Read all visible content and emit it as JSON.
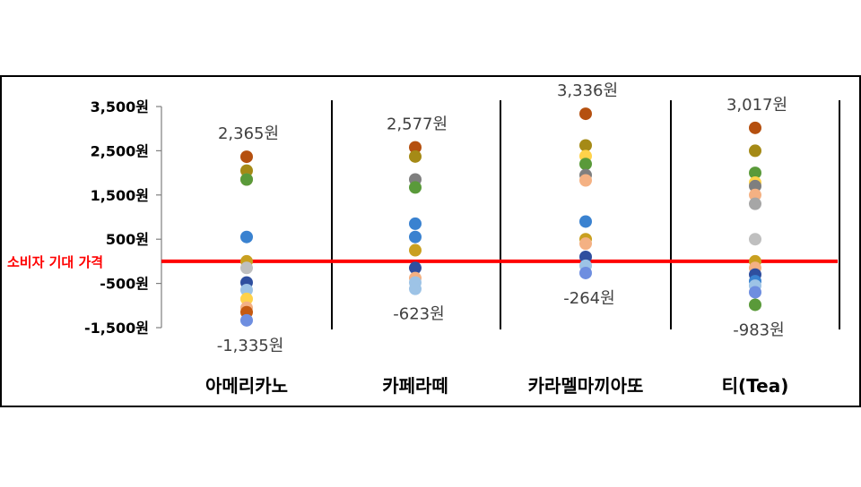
{
  "chart_data": {
    "type": "scatter",
    "title": "",
    "xlabel": "",
    "ylabel": "",
    "ylim": [
      -1500,
      3500
    ],
    "y_ticks": [
      "3,500원",
      "2,500원",
      "1,500원",
      "500원",
      "-500원",
      "-1,500원"
    ],
    "y_tick_values": [
      3500,
      2500,
      1500,
      500,
      -500,
      -1500
    ],
    "grid": false,
    "reference_line": {
      "label": "소비자 기대 가격",
      "value": 0,
      "color": "#ff0000"
    },
    "categories": [
      "아메리카노",
      "카페라떼",
      "카라멜마끼아또",
      "티(Tea)"
    ],
    "groups": [
      {
        "category": "아메리카노",
        "max_label": "2,365원",
        "min_label": "-1,335원",
        "points": [
          {
            "value": 2365,
            "color": "#b5500f"
          },
          {
            "value": 2050,
            "color": "#a58a16"
          },
          {
            "value": 1850,
            "color": "#f0a070"
          },
          {
            "value": 1850,
            "color": "#5a9a3a"
          },
          {
            "value": 550,
            "color": "#3a82d0"
          },
          {
            "value": 0,
            "color": "#c9a020"
          },
          {
            "value": -150,
            "color": "#bfbfbf"
          },
          {
            "value": -480,
            "color": "#2f4f9f"
          },
          {
            "value": -650,
            "color": "#9dc3e6"
          },
          {
            "value": -850,
            "color": "#ffd24a"
          },
          {
            "value": -1050,
            "color": "#f4b183"
          },
          {
            "value": -1150,
            "color": "#c55a11"
          },
          {
            "value": -1335,
            "color": "#6e8ee0"
          }
        ]
      },
      {
        "category": "카페라떼",
        "max_label": "2,577원",
        "min_label": "-623원",
        "points": [
          {
            "value": 2577,
            "color": "#b5500f"
          },
          {
            "value": 2370,
            "color": "#a58a16"
          },
          {
            "value": 1850,
            "color": "#7f7f7f"
          },
          {
            "value": 1670,
            "color": "#5a9a3a"
          },
          {
            "value": 850,
            "color": "#3a82d0"
          },
          {
            "value": 550,
            "color": "#3a82d0"
          },
          {
            "value": 250,
            "color": "#c9a020"
          },
          {
            "value": -150,
            "color": "#2f4f9f"
          },
          {
            "value": -380,
            "color": "#f4b183"
          },
          {
            "value": -480,
            "color": "#9dc3e6"
          },
          {
            "value": -623,
            "color": "#9dc3e6"
          }
        ]
      },
      {
        "category": "카라멜마끼아또",
        "max_label": "3,336원",
        "min_label": "-264원",
        "points": [
          {
            "value": 3336,
            "color": "#b5500f"
          },
          {
            "value": 2620,
            "color": "#a58a16"
          },
          {
            "value": 2380,
            "color": "#ffd24a"
          },
          {
            "value": 2200,
            "color": "#5a9a3a"
          },
          {
            "value": 1950,
            "color": "#7f7f7f"
          },
          {
            "value": 1830,
            "color": "#f4b183"
          },
          {
            "value": 900,
            "color": "#3a82d0"
          },
          {
            "value": 500,
            "color": "#c9a020"
          },
          {
            "value": 400,
            "color": "#f4b183"
          },
          {
            "value": 100,
            "color": "#2f4f9f"
          },
          {
            "value": -100,
            "color": "#9dc3e6"
          },
          {
            "value": -264,
            "color": "#6e8ee0"
          }
        ]
      },
      {
        "category": "티(Tea)",
        "max_label": "3,017원",
        "min_label": "-983원",
        "points": [
          {
            "value": 3017,
            "color": "#b5500f"
          },
          {
            "value": 2500,
            "color": "#a58a16"
          },
          {
            "value": 2000,
            "color": "#5a9a3a"
          },
          {
            "value": 1780,
            "color": "#ffd24a"
          },
          {
            "value": 1700,
            "color": "#7f7f7f"
          },
          {
            "value": 1500,
            "color": "#f4b183"
          },
          {
            "value": 1300,
            "color": "#a6a6a6"
          },
          {
            "value": 500,
            "color": "#bfbfbf"
          },
          {
            "value": 0,
            "color": "#c9a020"
          },
          {
            "value": -150,
            "color": "#f4b183"
          },
          {
            "value": -300,
            "color": "#2f4f9f"
          },
          {
            "value": -450,
            "color": "#3a82d0"
          },
          {
            "value": -550,
            "color": "#9dc3e6"
          },
          {
            "value": -700,
            "color": "#6e8ee0"
          },
          {
            "value": -983,
            "color": "#5a9a3a"
          }
        ]
      }
    ]
  }
}
